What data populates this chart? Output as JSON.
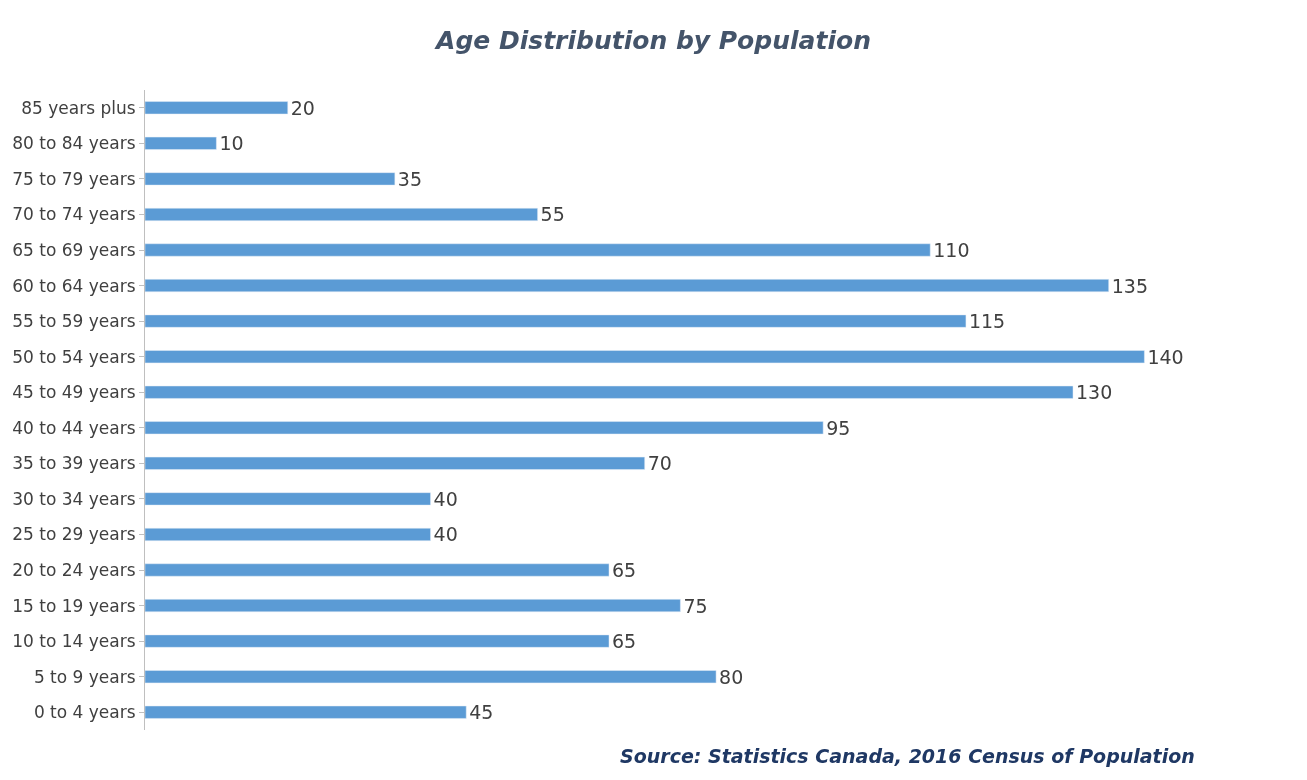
{
  "chart_data": {
    "type": "bar",
    "orientation": "horizontal",
    "title": "Age Distribution by Population",
    "categories": [
      "85 years plus",
      "80 to 84 years",
      "75 to 79 years",
      "70 to 74 years",
      "65 to 69 years",
      "60 to 64 years",
      "55 to 59 years",
      "50 to 54 years",
      "45 to 49 years",
      "40 to 44 years",
      "35 to 39 years",
      "30 to 34 years",
      "25 to 29 years",
      "20 to 24 years",
      "15 to 19 years",
      "10 to 14 years",
      "5 to 9 years",
      "0 to 4 years"
    ],
    "values": [
      20,
      10,
      35,
      55,
      110,
      135,
      115,
      140,
      130,
      95,
      70,
      40,
      40,
      65,
      75,
      65,
      80,
      45
    ],
    "color": "#5b9bd5",
    "data_labels": true,
    "annotations": [
      "Source: Statistics Canada, 2016 Census of Population"
    ]
  }
}
